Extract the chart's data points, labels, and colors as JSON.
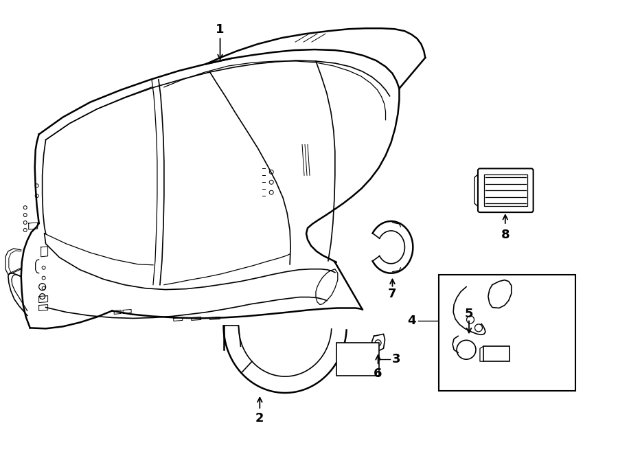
{
  "background_color": "#ffffff",
  "line_color": "#000000",
  "figure_width": 9.0,
  "figure_height": 6.61,
  "dpi": 100
}
